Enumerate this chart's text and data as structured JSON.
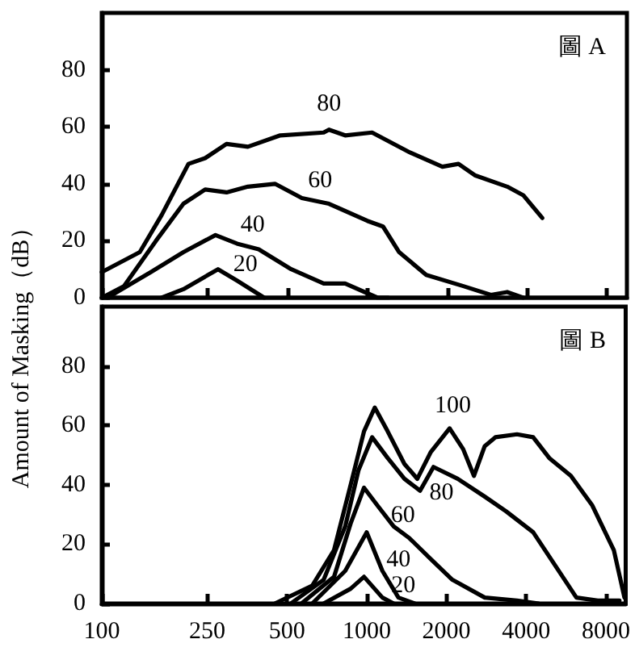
{
  "chart_data": [
    {
      "type": "line",
      "ylabel": "Amount of Masking（dB）",
      "annotations": [
        "圖 A"
      ],
      "series": [
        {
          "name": "80",
          "color": "#000000",
          "x": [
            100,
            139,
            168,
            212,
            245,
            295,
            355,
            470,
            685,
            717,
            825,
            1042,
            1447,
            1917,
            2205,
            2540,
            3364,
            3866,
            4560
          ],
          "values": [
            9,
            16,
            29,
            47,
            49,
            54,
            53,
            57,
            58,
            59,
            57,
            58,
            51,
            46,
            47,
            43,
            39,
            36,
            28
          ]
        },
        {
          "name": "60",
          "color": "#000000",
          "x": [
            100,
            121,
            160,
            203,
            245,
            295,
            355,
            449,
            567,
            717,
            1000,
            1146,
            1318,
            1667,
            2313,
            2920,
            3364,
            3866
          ],
          "values": [
            0,
            4,
            20,
            33,
            38,
            37,
            39,
            40,
            35,
            33,
            27,
            25,
            16,
            8,
            4,
            1,
            2,
            0
          ]
        },
        {
          "name": "40",
          "color": "#000000",
          "x": [
            105,
            153,
            203,
            268,
            323,
            390,
            517,
            685,
            825,
            1093,
            1200
          ],
          "values": [
            0,
            9,
            16,
            22,
            19,
            17,
            10,
            5,
            5,
            0,
            0
          ]
        },
        {
          "name": "20",
          "color": "#000000",
          "x": [
            168,
            203,
            274,
            323,
            409
          ],
          "values": [
            0,
            3,
            10,
            6,
            0
          ]
        }
      ],
      "log": "x",
      "xlim": [
        100,
        9500
      ],
      "xticks": [
        100,
        250,
        500,
        1000,
        2000,
        4000,
        8000
      ],
      "ylim": [
        0,
        100
      ],
      "yticks": [
        0,
        20,
        40,
        60,
        80
      ],
      "tick_labels": "y",
      "grid": false,
      "marker": "none",
      "line_style": "solid"
    },
    {
      "type": "line",
      "annotations": [
        "圖 B"
      ],
      "series": [
        {
          "name": "100",
          "color": "#000000",
          "x": [
            450,
            623,
            753,
            870,
            977,
            1073,
            1200,
            1388,
            1553,
            1745,
            2056,
            2313,
            2540,
            2790,
            3060,
            3693,
            4250,
            4890,
            5900,
            7110,
            8570,
            9400
          ],
          "values": [
            0,
            6,
            18,
            40,
            58,
            66,
            58,
            47,
            42,
            51,
            59,
            52,
            43,
            53,
            56,
            57,
            56,
            49,
            43,
            33,
            18,
            2
          ]
        },
        {
          "name": "80",
          "color": "#000000",
          "x": [
            517,
            688,
            830,
            932,
            1048,
            1200,
            1388,
            1590,
            1787,
            2205,
            2790,
            3364,
            4250,
            5130,
            6190,
            7450,
            9000
          ],
          "values": [
            0,
            8,
            26,
            45,
            56,
            49,
            42,
            38,
            46,
            42,
            36,
            31,
            24,
            13,
            2,
            1,
            1
          ]
        },
        {
          "name": "60",
          "color": "#000000",
          "x": [
            567,
            753,
            870,
            977,
            1098,
            1264,
            1450,
            1745,
            2106,
            2790,
            3693,
            4460
          ],
          "values": [
            0,
            9,
            27,
            39,
            33,
            26,
            22,
            15,
            8,
            2,
            1,
            0
          ]
        },
        {
          "name": "40",
          "color": "#000000",
          "x": [
            623,
            830,
            1000,
            1146,
            1318,
            1517
          ],
          "values": [
            0,
            11,
            24,
            11,
            2,
            0
          ]
        },
        {
          "name": "20",
          "color": "#000000",
          "x": [
            688,
            870,
            977,
            1146,
            1264
          ],
          "values": [
            0,
            5,
            9,
            2,
            0
          ]
        }
      ],
      "log": "x",
      "xlim": [
        100,
        9500
      ],
      "xticks": [
        100,
        250,
        500,
        1000,
        2000,
        4000,
        8000
      ],
      "ylim": [
        0,
        100
      ],
      "yticks": [
        0,
        20,
        40,
        60,
        80
      ],
      "grid": false,
      "marker": "none",
      "line_style": "solid"
    }
  ]
}
